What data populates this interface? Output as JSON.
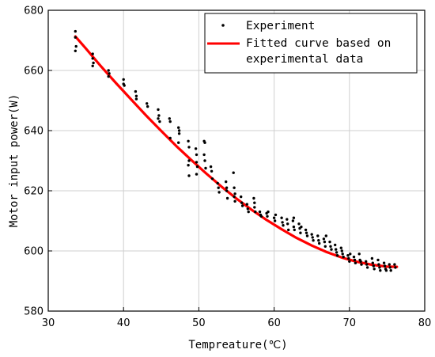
{
  "chart_data": {
    "type": "scatter",
    "title": "",
    "xlabel": "Tempreature(℃)",
    "ylabel": "Motor input power(W)",
    "xlim": [
      30,
      80
    ],
    "ylim": [
      580,
      680
    ],
    "xticks": [
      30,
      40,
      50,
      60,
      70,
      80
    ],
    "yticks": [
      580,
      600,
      620,
      640,
      660,
      680
    ],
    "grid": true,
    "legend_position": "top-right",
    "series": [
      {
        "name": "Experiment",
        "kind": "scatter",
        "color": "#000000",
        "points": [
          [
            33.6,
            673.0
          ],
          [
            33.6,
            671.0
          ],
          [
            33.7,
            668.0
          ],
          [
            33.6,
            666.5
          ],
          [
            35.9,
            665.5
          ],
          [
            35.9,
            664.0
          ],
          [
            36.0,
            662.5
          ],
          [
            35.9,
            661.5
          ],
          [
            38.0,
            660.0
          ],
          [
            38.1,
            659.0
          ],
          [
            38.0,
            658.0
          ],
          [
            40.0,
            657.0
          ],
          [
            40.0,
            655.5
          ],
          [
            40.1,
            655.0
          ],
          [
            41.6,
            653.0
          ],
          [
            41.7,
            651.5
          ],
          [
            41.7,
            650.5
          ],
          [
            43.1,
            649.0
          ],
          [
            43.2,
            648.0
          ],
          [
            44.6,
            647.0
          ],
          [
            44.7,
            645.0
          ],
          [
            44.6,
            644.0
          ],
          [
            44.8,
            643.0
          ],
          [
            46.1,
            644.0
          ],
          [
            46.2,
            643.0
          ],
          [
            46.2,
            637.5
          ],
          [
            47.3,
            641.0
          ],
          [
            47.4,
            640.0
          ],
          [
            47.4,
            639.0
          ],
          [
            47.3,
            636.0
          ],
          [
            48.6,
            636.5
          ],
          [
            48.7,
            634.5
          ],
          [
            48.7,
            630.0
          ],
          [
            48.6,
            628.5
          ],
          [
            48.7,
            625.0
          ],
          [
            49.6,
            634.0
          ],
          [
            49.7,
            632.0
          ],
          [
            49.7,
            629.5
          ],
          [
            49.8,
            628.0
          ],
          [
            49.7,
            625.5
          ],
          [
            50.7,
            636.5
          ],
          [
            50.8,
            636.0
          ],
          [
            50.7,
            632.0
          ],
          [
            50.8,
            630.0
          ],
          [
            50.9,
            627.5
          ],
          [
            51.6,
            628.0
          ],
          [
            51.7,
            626.5
          ],
          [
            51.8,
            624.0
          ],
          [
            52.5,
            622.5
          ],
          [
            52.6,
            621.0
          ],
          [
            52.7,
            619.5
          ],
          [
            53.6,
            623.0
          ],
          [
            53.7,
            621.0
          ],
          [
            53.7,
            620.0
          ],
          [
            53.8,
            617.5
          ],
          [
            54.6,
            626.0
          ],
          [
            54.7,
            621.0
          ],
          [
            54.8,
            619.0
          ],
          [
            54.7,
            618.0
          ],
          [
            54.8,
            616.5
          ],
          [
            55.6,
            618.0
          ],
          [
            55.7,
            616.0
          ],
          [
            55.8,
            615.0
          ],
          [
            56.4,
            615.5
          ],
          [
            56.5,
            614.0
          ],
          [
            56.6,
            613.0
          ],
          [
            57.3,
            617.5
          ],
          [
            57.4,
            616.0
          ],
          [
            57.4,
            614.5
          ],
          [
            57.5,
            613.0
          ],
          [
            58.1,
            613.0
          ],
          [
            58.2,
            612.0
          ],
          [
            58.3,
            611.5
          ],
          [
            59.0,
            612.5
          ],
          [
            59.1,
            611.5
          ],
          [
            59.2,
            613.0
          ],
          [
            60.0,
            611.0
          ],
          [
            60.1,
            610.0
          ],
          [
            60.2,
            612.0
          ],
          [
            61.0,
            611.0
          ],
          [
            61.1,
            609.5
          ],
          [
            61.2,
            608.5
          ],
          [
            61.7,
            610.5
          ],
          [
            61.8,
            609.0
          ],
          [
            61.9,
            607.0
          ],
          [
            62.5,
            610.0
          ],
          [
            62.6,
            608.0
          ],
          [
            62.7,
            607.0
          ],
          [
            62.6,
            611.0
          ],
          [
            63.3,
            609.0
          ],
          [
            63.4,
            607.5
          ],
          [
            63.5,
            606.0
          ],
          [
            63.6,
            608.0
          ],
          [
            64.2,
            607.0
          ],
          [
            64.3,
            606.0
          ],
          [
            64.4,
            605.0
          ],
          [
            65.0,
            605.5
          ],
          [
            65.1,
            604.5
          ],
          [
            65.2,
            603.5
          ],
          [
            65.8,
            605.0
          ],
          [
            65.9,
            603.5
          ],
          [
            66.0,
            602.5
          ],
          [
            66.6,
            604.0
          ],
          [
            66.7,
            603.0
          ],
          [
            66.8,
            601.5
          ],
          [
            66.9,
            605.0
          ],
          [
            67.4,
            603.0
          ],
          [
            67.5,
            601.5
          ],
          [
            67.6,
            600.5
          ],
          [
            68.1,
            602.0
          ],
          [
            68.2,
            600.5
          ],
          [
            68.3,
            599.5
          ],
          [
            68.4,
            598.5
          ],
          [
            68.9,
            601.0
          ],
          [
            69.0,
            600.0
          ],
          [
            69.1,
            599.0
          ],
          [
            69.2,
            598.0
          ],
          [
            69.8,
            598.5
          ],
          [
            69.9,
            597.5
          ],
          [
            70.0,
            596.5
          ],
          [
            70.1,
            599.0
          ],
          [
            70.6,
            598.0
          ],
          [
            70.7,
            597.0
          ],
          [
            70.8,
            596.0
          ],
          [
            71.3,
            599.0
          ],
          [
            71.4,
            597.0
          ],
          [
            71.5,
            596.5
          ],
          [
            71.6,
            595.5
          ],
          [
            72.2,
            596.5
          ],
          [
            72.3,
            595.5
          ],
          [
            72.4,
            594.5
          ],
          [
            73.0,
            597.5
          ],
          [
            73.1,
            596.0
          ],
          [
            73.2,
            595.0
          ],
          [
            73.3,
            594.0
          ],
          [
            73.8,
            597.0
          ],
          [
            73.9,
            595.5
          ],
          [
            74.0,
            594.5
          ],
          [
            74.1,
            593.5
          ],
          [
            74.6,
            596.0
          ],
          [
            74.7,
            595.0
          ],
          [
            74.8,
            594.0
          ],
          [
            74.9,
            593.5
          ],
          [
            75.3,
            595.5
          ],
          [
            75.4,
            594.5
          ],
          [
            75.5,
            593.5
          ],
          [
            76.0,
            595.5
          ],
          [
            76.1,
            594.5
          ]
        ]
      },
      {
        "name": "Fitted curve based on experimental data",
        "kind": "line",
        "color": "#ff0000",
        "points": [
          [
            33.6,
            671.3
          ],
          [
            35.0,
            667.3
          ],
          [
            37.0,
            661.4
          ],
          [
            39.0,
            655.8
          ],
          [
            41.0,
            650.4
          ],
          [
            43.0,
            645.0
          ],
          [
            45.0,
            639.9
          ],
          [
            47.0,
            634.9
          ],
          [
            49.0,
            630.2
          ],
          [
            51.0,
            625.7
          ],
          [
            53.0,
            621.4
          ],
          [
            55.0,
            617.4
          ],
          [
            57.0,
            613.7
          ],
          [
            59.0,
            610.3
          ],
          [
            61.0,
            607.2
          ],
          [
            63.0,
            604.3
          ],
          [
            65.0,
            601.8
          ],
          [
            67.0,
            599.6
          ],
          [
            69.0,
            597.8
          ],
          [
            71.0,
            596.4
          ],
          [
            73.0,
            595.4
          ],
          [
            75.0,
            594.8
          ],
          [
            76.3,
            594.7
          ]
        ]
      }
    ]
  }
}
